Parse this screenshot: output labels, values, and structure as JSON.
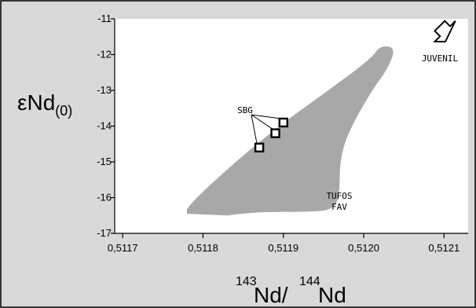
{
  "chart_data": {
    "type": "scatter",
    "ylabel_main": "εNd",
    "ylabel_sub": "(0)",
    "xlabel_sup1": "143",
    "xlabel_mid": "Nd/",
    "xlabel_sup2": "144",
    "xlabel_end": "Nd",
    "xlim": [
      0.51169,
      0.51213
    ],
    "ylim": [
      -17,
      -11
    ],
    "x_ticks": [
      {
        "v": 0.5117,
        "label": "0,5117"
      },
      {
        "v": 0.5118,
        "label": "0,5118"
      },
      {
        "v": 0.5119,
        "label": "0,5119"
      },
      {
        "v": 0.512,
        "label": "0,5120"
      },
      {
        "v": 0.5121,
        "label": "0,5121"
      }
    ],
    "y_ticks": [
      {
        "v": -11,
        "label": "-11"
      },
      {
        "v": -12,
        "label": "-12"
      },
      {
        "v": -13,
        "label": "-13"
      },
      {
        "v": -14,
        "label": "-14"
      },
      {
        "v": -15,
        "label": "-15"
      },
      {
        "v": -16,
        "label": "-16"
      },
      {
        "v": -17,
        "label": "-17"
      }
    ],
    "points": [
      {
        "x": 0.51187,
        "y": -14.6
      },
      {
        "x": 0.51189,
        "y": -14.2
      },
      {
        "x": 0.5119,
        "y": -13.9
      }
    ],
    "points_label": "SBG",
    "field": [
      [
        0.51178,
        -16.45
      ],
      [
        0.51178,
        -16.25
      ],
      [
        0.51184,
        -15.0
      ],
      [
        0.5119,
        -13.9
      ],
      [
        0.51195,
        -13.1
      ],
      [
        0.51201,
        -12.1
      ],
      [
        0.51202,
        -11.75
      ],
      [
        0.51204,
        -11.8
      ],
      [
        0.51203,
        -12.4
      ],
      [
        0.51201,
        -13.0
      ],
      [
        0.51198,
        -14.2
      ],
      [
        0.51197,
        -15.0
      ],
      [
        0.51197,
        -16.0
      ],
      [
        0.51196,
        -16.35
      ],
      [
        0.51193,
        -16.4
      ],
      [
        0.51186,
        -16.4
      ],
      [
        0.5118,
        -16.6
      ]
    ],
    "field_label_1": "TUFOS",
    "field_label_2": "FAV",
    "arrow_label": "JUVENIL",
    "colors": {
      "background": "#d9d9d9",
      "plot_area": "#ffffff",
      "field": "#a8a8a8",
      "axis": "#000000"
    }
  }
}
